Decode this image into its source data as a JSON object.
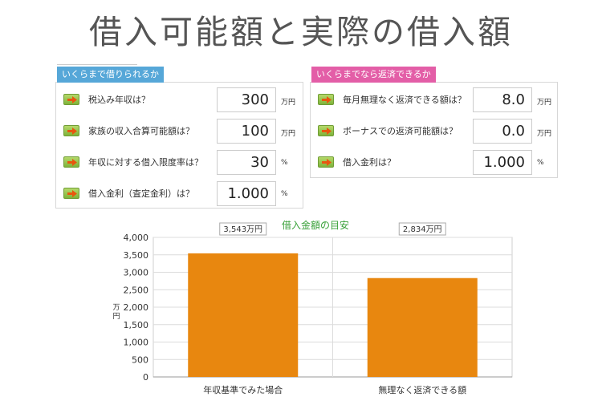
{
  "title": "借入可能額と実際の借入額",
  "left_panel": {
    "tab": "いくらまで借りられるか",
    "rows": [
      {
        "label": "税込み年収は？",
        "value": "300",
        "unit": "万円"
      },
      {
        "label": "家族の収入合算可能額は？",
        "value": "100",
        "unit": "万円"
      },
      {
        "label": "年収に対する借入限度率は？",
        "value": "30",
        "unit": "%"
      },
      {
        "label": "借入金利（査定金利）は？",
        "value": "1.000",
        "unit": "%"
      }
    ]
  },
  "right_panel": {
    "tab": "いくらまでなら返済できるか",
    "rows": [
      {
        "label": "毎月無理なく返済できる額は？",
        "value": "8.0",
        "unit": "万円"
      },
      {
        "label": "ボーナスでの返済可能額は？",
        "value": "0.0",
        "unit": "万円"
      },
      {
        "label": "借入金利は？",
        "value": "1.000",
        "unit": "%"
      }
    ]
  },
  "colors": {
    "bar": "#e8870f",
    "chart_title": "#3aa13a",
    "left_tab": "#56a7d8",
    "right_tab": "#e35ea7",
    "arrow_button": "#8dbf45"
  },
  "icons": {
    "row_button": "right-arrow-icon"
  },
  "chart_data": {
    "type": "bar",
    "title": "借入金額の目安",
    "ylabel": "万円",
    "categories": [
      "年収基準でみた場合",
      "無理なく返済できる額"
    ],
    "values": [
      3543,
      2834
    ],
    "data_labels": [
      "3,543万円",
      "2,834万円"
    ],
    "ylim": [
      0,
      4000
    ],
    "yticks": [
      0,
      500,
      1000,
      1500,
      2000,
      2500,
      3000,
      3500,
      4000
    ],
    "ytick_labels": [
      "0",
      "500",
      "1,000",
      "1,500",
      "2,000",
      "2,500",
      "3,000",
      "3,500",
      "4,000"
    ],
    "grid": true
  }
}
